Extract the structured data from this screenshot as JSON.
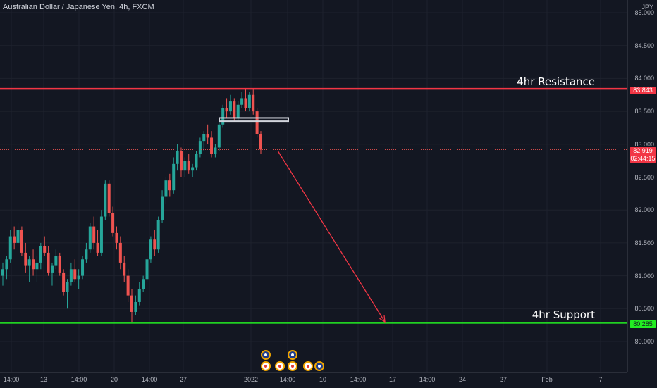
{
  "header": {
    "title": "Australian Dollar / Japanese Yen, 4h, FXCM"
  },
  "price_axis": {
    "currency": "JPY",
    "ticks": [
      "85.000",
      "84.500",
      "84.000",
      "83.500",
      "83.000",
      "82.500",
      "82.000",
      "81.500",
      "81.000",
      "80.500",
      "80.000"
    ],
    "resistance_tag": "83.843",
    "current_price_tag": "82.919",
    "countdown": "02:44:15",
    "support_tag": "80.285"
  },
  "time_axis": {
    "labels": [
      "14:00",
      "13",
      "14:00",
      "20",
      "14:00",
      "27",
      "2022",
      "14:00",
      "10",
      "14:00",
      "17",
      "14:00",
      "24",
      "27",
      "Feb",
      "7"
    ]
  },
  "annotations": {
    "resistance_label": "4hr Resistance",
    "support_label": "4hr Support"
  },
  "colors": {
    "up": "#26a69a",
    "down": "#ef5350",
    "resistance": "#f23645",
    "support": "#22ee22",
    "arrow": "#f23645",
    "background": "#131722"
  },
  "chart_data": {
    "type": "candlestick",
    "symbol": "AUDJPY",
    "timeframe": "4h",
    "ylim": [
      79.6,
      85.1
    ],
    "resistance": 83.843,
    "support": 80.285,
    "current_price": 82.919,
    "zone": [
      83.35,
      83.4
    ],
    "projection": {
      "from": 82.9,
      "to": 80.3
    },
    "candles": [
      [
        81.0,
        81.2,
        80.85,
        81.1
      ],
      [
        81.1,
        81.3,
        80.95,
        81.25
      ],
      [
        81.25,
        81.7,
        81.2,
        81.6
      ],
      [
        81.6,
        81.75,
        81.4,
        81.5
      ],
      [
        81.5,
        81.8,
        81.45,
        81.7
      ],
      [
        81.7,
        81.75,
        81.3,
        81.35
      ],
      [
        81.35,
        81.5,
        81.05,
        81.15
      ],
      [
        81.15,
        81.3,
        80.9,
        81.25
      ],
      [
        81.25,
        81.4,
        81.0,
        81.1
      ],
      [
        81.1,
        81.3,
        80.9,
        81.2
      ],
      [
        81.2,
        81.5,
        81.1,
        81.45
      ],
      [
        81.45,
        81.6,
        81.3,
        81.35
      ],
      [
        81.35,
        81.45,
        81.0,
        81.05
      ],
      [
        81.05,
        81.2,
        80.85,
        81.15
      ],
      [
        81.15,
        81.4,
        81.1,
        81.3
      ],
      [
        81.3,
        81.35,
        81.0,
        81.05
      ],
      [
        81.05,
        81.1,
        80.7,
        80.75
      ],
      [
        80.75,
        80.95,
        80.5,
        80.9
      ],
      [
        80.9,
        81.2,
        80.85,
        81.1
      ],
      [
        81.1,
        81.25,
        80.9,
        80.95
      ],
      [
        80.95,
        81.1,
        80.8,
        81.0
      ],
      [
        81.0,
        81.3,
        80.95,
        81.25
      ],
      [
        81.25,
        81.5,
        81.2,
        81.4
      ],
      [
        81.4,
        81.8,
        81.35,
        81.75
      ],
      [
        81.75,
        81.9,
        81.4,
        81.5
      ],
      [
        81.5,
        81.7,
        81.3,
        81.35
      ],
      [
        81.35,
        82.0,
        81.3,
        81.9
      ],
      [
        81.9,
        82.45,
        81.85,
        82.4
      ],
      [
        82.4,
        82.45,
        81.9,
        81.95
      ],
      [
        81.95,
        82.05,
        81.6,
        81.65
      ],
      [
        81.65,
        81.75,
        81.4,
        81.5
      ],
      [
        81.5,
        81.6,
        81.1,
        81.2
      ],
      [
        81.2,
        81.3,
        80.9,
        81.0
      ],
      [
        81.0,
        81.1,
        80.6,
        80.7
      ],
      [
        80.7,
        80.8,
        80.3,
        80.45
      ],
      [
        80.45,
        80.7,
        80.4,
        80.6
      ],
      [
        80.6,
        80.9,
        80.55,
        80.8
      ],
      [
        80.8,
        81.0,
        80.75,
        80.95
      ],
      [
        80.95,
        81.3,
        80.9,
        81.25
      ],
      [
        81.25,
        81.6,
        81.2,
        81.55
      ],
      [
        81.55,
        81.7,
        81.3,
        81.4
      ],
      [
        81.4,
        81.9,
        81.35,
        81.85
      ],
      [
        81.85,
        82.3,
        81.8,
        82.2
      ],
      [
        82.2,
        82.5,
        82.1,
        82.45
      ],
      [
        82.45,
        82.55,
        82.2,
        82.3
      ],
      [
        82.3,
        82.8,
        82.25,
        82.7
      ],
      [
        82.7,
        83.0,
        82.6,
        82.9
      ],
      [
        82.9,
        82.95,
        82.5,
        82.6
      ],
      [
        82.6,
        82.8,
        82.5,
        82.75
      ],
      [
        82.75,
        82.85,
        82.55,
        82.6
      ],
      [
        82.6,
        82.7,
        82.5,
        82.65
      ],
      [
        82.65,
        82.9,
        82.6,
        82.85
      ],
      [
        82.85,
        83.1,
        82.8,
        83.05
      ],
      [
        83.05,
        83.2,
        82.9,
        83.15
      ],
      [
        83.15,
        83.3,
        83.0,
        83.1
      ],
      [
        83.1,
        83.2,
        82.8,
        82.85
      ],
      [
        82.85,
        83.0,
        82.8,
        82.95
      ],
      [
        82.95,
        83.4,
        82.9,
        83.3
      ],
      [
        83.3,
        83.6,
        83.25,
        83.55
      ],
      [
        83.55,
        83.7,
        83.4,
        83.5
      ],
      [
        83.5,
        83.75,
        83.45,
        83.65
      ],
      [
        83.65,
        83.7,
        83.35,
        83.4
      ],
      [
        83.4,
        83.65,
        83.35,
        83.6
      ],
      [
        83.6,
        83.8,
        83.55,
        83.7
      ],
      [
        83.7,
        83.85,
        83.5,
        83.55
      ],
      [
        83.55,
        83.8,
        83.5,
        83.75
      ],
      [
        83.75,
        83.85,
        83.45,
        83.5
      ],
      [
        83.5,
        83.55,
        83.1,
        83.15
      ],
      [
        83.15,
        83.2,
        82.85,
        82.92
      ]
    ]
  }
}
